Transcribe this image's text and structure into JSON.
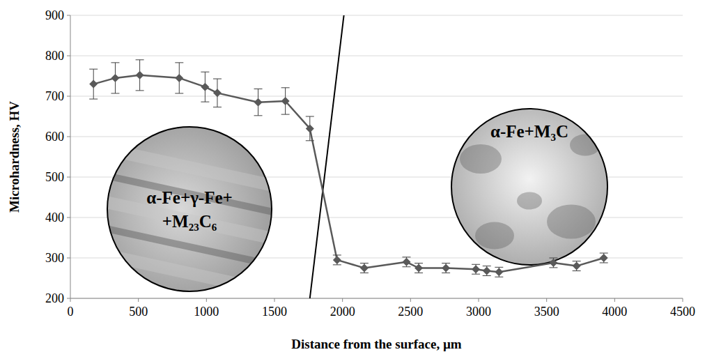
{
  "chart_data": {
    "type": "line",
    "x_label": "Distance from the surface, µm",
    "y_label": "Microhardness, HV",
    "x": [
      170,
      330,
      510,
      800,
      990,
      1080,
      1380,
      1580,
      1760,
      1960,
      2160,
      2470,
      2560,
      2760,
      2980,
      3060,
      3150,
      3550,
      3720,
      3920
    ],
    "series": [
      {
        "color": "#595959",
        "marker": "diamond",
        "line_style": "solid",
        "values": [
          730,
          745,
          752,
          745,
          723,
          708,
          685,
          688,
          620,
          295,
          275,
          290,
          275,
          275,
          272,
          268,
          265,
          288,
          280,
          300
        ],
        "errors": [
          37,
          38,
          38,
          38,
          37,
          35,
          33,
          33,
          30,
          12,
          12,
          12,
          12,
          12,
          12,
          12,
          12,
          12,
          12,
          12
        ]
      }
    ],
    "xlim": [
      0,
      4500
    ],
    "ylim": [
      200,
      900
    ],
    "xticks": [
      0,
      500,
      1000,
      1500,
      2000,
      2500,
      3000,
      3500,
      4000,
      4500
    ],
    "yticks": [
      200,
      300,
      400,
      500,
      600,
      700,
      800,
      900
    ],
    "grid": true,
    "boundary": {
      "x": [
        1760,
        2010
      ],
      "y": [
        200,
        900
      ]
    },
    "insets": [
      {
        "label": [
          "α-Fe+γ-Fe+",
          "+M₂₃C₆"
        ]
      },
      {
        "label": [
          "α-Fe+M₃C"
        ]
      }
    ]
  }
}
